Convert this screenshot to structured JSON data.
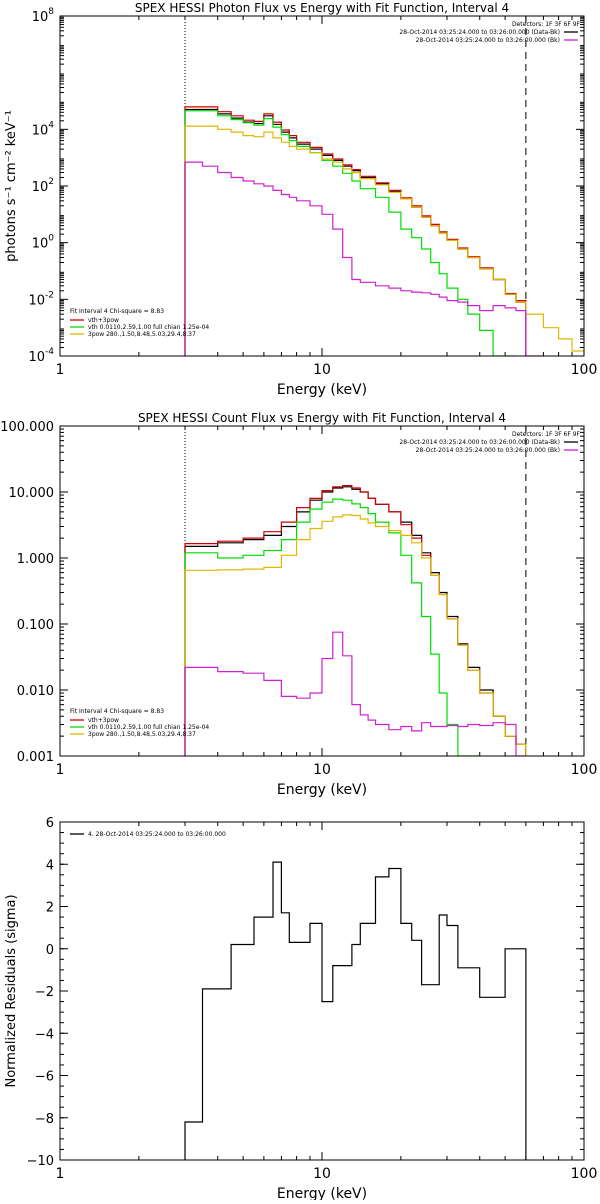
{
  "chart_data": [
    {
      "type": "line",
      "title": "SPEX HESSI Photon Flux vs Energy with Fit Function, Interval 4",
      "xlabel": "Energy (keV)",
      "ylabel": "photons s⁻¹ cm⁻² keV⁻¹",
      "xscale": "log",
      "yscale": "log",
      "xlim": [
        1,
        100
      ],
      "ylim": [
        0.0001,
        100000000
      ],
      "xticks": [
        {
          "v": 1,
          "label": "1"
        },
        {
          "v": 10,
          "label": "10"
        },
        {
          "v": 100,
          "label": "100"
        }
      ],
      "yticks": [
        {
          "v": 0.0001,
          "base": "10",
          "exp": "-4"
        },
        {
          "v": 0.01,
          "base": "10",
          "exp": "-2"
        },
        {
          "v": 1,
          "base": "10",
          "exp": "0"
        },
        {
          "v": 100,
          "base": "10",
          "exp": "2"
        },
        {
          "v": 10000,
          "base": "10",
          "exp": "4"
        },
        {
          "v": 100000000,
          "base": "10",
          "exp": "8"
        }
      ],
      "vlines": [
        {
          "x": 3,
          "style": "dotted"
        },
        {
          "x": 60,
          "style": "dashed"
        }
      ],
      "detectors": "Detectors: 1F 3F 6F 9F",
      "legend_top": [
        {
          "text": "28-Oct-2014 03:25:24.000 to 03:26:00.000 (Data-Bk)",
          "color": "#000000"
        },
        {
          "text": "28-Oct-2014 03:25:24.000 to 03:26:00.000 (Bk)",
          "color": "#d020d0"
        }
      ],
      "fit_info": "Fit Interval 4   Chi-square = 8.83",
      "legend_bottom": [
        {
          "text": "vth+3pow",
          "color": "#cc0000"
        },
        {
          "text": "vth 0.0110,2.59,1.00  full chian 1.25e-04",
          "color": "#00dd00"
        },
        {
          "text": "3pow 280.,1.50,8.48,5.03,29.4,8.37",
          "color": "#e0b800"
        }
      ],
      "edges": [
        3,
        3.5,
        4,
        4.5,
        5,
        5.5,
        6,
        6.5,
        7,
        7.5,
        8,
        9,
        10,
        11,
        12,
        13,
        14,
        16,
        18,
        20,
        22,
        24,
        26,
        28,
        30,
        33,
        36,
        40,
        45,
        50,
        55,
        60,
        70,
        80,
        90,
        100
      ],
      "series": [
        {
          "color": "#000000",
          "values": [
            50000,
            50000,
            35000,
            25000,
            18000,
            16000,
            30000,
            15000,
            8000,
            5000,
            3000,
            2000,
            1200,
            800,
            500,
            350,
            200,
            120,
            65,
            35,
            18,
            8,
            4,
            2.2,
            1.2,
            0.6,
            0.3,
            0.12,
            0.05,
            0.015,
            0.008,
            null,
            null,
            null,
            null
          ]
        },
        {
          "color": "#cc0000",
          "values": [
            62000,
            62000,
            42000,
            30000,
            21000,
            19000,
            35000,
            18000,
            9500,
            6000,
            3500,
            2300,
            1350,
            900,
            560,
            380,
            220,
            130,
            70,
            38,
            20,
            8.8,
            4.4,
            2.4,
            1.3,
            0.65,
            0.32,
            0.13,
            0.05,
            0.016,
            0.009,
            null,
            null,
            null,
            null
          ]
        },
        {
          "color": "#00dd00",
          "values": [
            45000,
            45000,
            30000,
            22000,
            17000,
            14000,
            24000,
            12000,
            6500,
            4000,
            2500,
            1500,
            800,
            500,
            280,
            150,
            80,
            40,
            12,
            3,
            1.5,
            0.6,
            0.2,
            0.08,
            0.025,
            0.01,
            0.003,
            0.0008,
            0.0001,
            5e-05,
            null,
            null,
            null,
            null,
            null
          ]
        },
        {
          "color": "#e0b800",
          "values": [
            13000,
            13000,
            10000,
            8000,
            6000,
            5500,
            8000,
            5000,
            3500,
            2500,
            2000,
            1500,
            900,
            700,
            400,
            300,
            180,
            110,
            60,
            35,
            18,
            8,
            4,
            2.2,
            1.2,
            0.6,
            0.3,
            0.12,
            0.05,
            0.015,
            0.008,
            0.003,
            0.001,
            0.0004,
            0.00015
          ]
        },
        {
          "color": "#d020d0",
          "values": [
            700,
            500,
            300,
            200,
            150,
            120,
            100,
            70,
            50,
            40,
            30,
            20,
            10,
            3,
            0.3,
            0.05,
            0.04,
            0.03,
            0.025,
            0.02,
            0.018,
            0.017,
            0.015,
            0.012,
            0.009,
            0.008,
            0.006,
            0.004,
            0.006,
            0.005,
            0.004,
            5e-05,
            null,
            null,
            null
          ]
        }
      ]
    },
    {
      "type": "line",
      "title": "SPEX HESSI Count Flux vs Energy with Fit Function, Interval 4",
      "xlabel": "Energy (keV)",
      "ylabel": "",
      "xscale": "log",
      "yscale": "log",
      "xlim": [
        1,
        100
      ],
      "ylim": [
        0.001,
        100
      ],
      "xticks": [
        {
          "v": 1,
          "label": "1"
        },
        {
          "v": 10,
          "label": "10"
        },
        {
          "v": 100,
          "label": "100"
        }
      ],
      "yticks": [
        {
          "v": 0.001,
          "label": "0.001"
        },
        {
          "v": 0.01,
          "label": "0.010"
        },
        {
          "v": 0.1,
          "label": "0.100"
        },
        {
          "v": 1,
          "label": "1.000"
        },
        {
          "v": 10,
          "label": "10.000"
        },
        {
          "v": 100,
          "label": "100.000"
        }
      ],
      "vlines": [
        {
          "x": 3,
          "style": "dotted"
        },
        {
          "x": 60,
          "style": "dashed"
        }
      ],
      "detectors": "Detectors: 1F 3F 6F 9F",
      "legend_top": [
        {
          "text": "28-Oct-2014 03:25:24.000 to 03:26:00.000 (Data-Bk)",
          "color": "#000000"
        },
        {
          "text": "28-Oct-2014 03:25:24.000 to 03:26:00.000 (Bk)",
          "color": "#d020d0"
        }
      ],
      "fit_info": "Fit Interval 4   Chi-square = 8.83",
      "legend_bottom": [
        {
          "text": "vth+3pow",
          "color": "#cc0000"
        },
        {
          "text": "vth 0.0110,2.59,1.00  full chian 1.25e-04",
          "color": "#00dd00"
        },
        {
          "text": "3pow 280.,1.50,8.48,5.03,29.4,8.37",
          "color": "#e0b800"
        }
      ],
      "edges": [
        3,
        4,
        5,
        6,
        7,
        8,
        9,
        10,
        11,
        12,
        13,
        14,
        15,
        16,
        18,
        20,
        22,
        24,
        26,
        28,
        30,
        33,
        36,
        40,
        45,
        50,
        55,
        60
      ],
      "series": [
        {
          "color": "#000000",
          "values": [
            1.5,
            1.7,
            1.9,
            2.2,
            3.0,
            5.0,
            7.5,
            10.0,
            11.5,
            12.0,
            11.0,
            10.0,
            8.0,
            6.5,
            5.0,
            3.5,
            2.2,
            1.2,
            0.6,
            0.3,
            0.13,
            0.05,
            0.022,
            0.01,
            0.004,
            0.002,
            0.0015
          ]
        },
        {
          "color": "#cc0000",
          "values": [
            1.65,
            1.8,
            2.0,
            2.5,
            3.5,
            5.8,
            8.0,
            10.5,
            12.0,
            12.5,
            11.5,
            10.0,
            8.0,
            6.5,
            5.0,
            3.2,
            2.0,
            1.1,
            0.55,
            0.28,
            0.12,
            0.048,
            0.02,
            0.009,
            0.004,
            0.002,
            0.0015
          ]
        },
        {
          "color": "#00dd00",
          "values": [
            1.2,
            1.0,
            1.1,
            1.3,
            1.9,
            3.5,
            5.5,
            7.0,
            7.8,
            7.5,
            6.6,
            5.8,
            4.7,
            3.5,
            2.4,
            1.1,
            0.42,
            0.13,
            0.035,
            0.009,
            0.003,
            0.001,
            0.0005,
            null,
            null,
            null,
            null
          ]
        },
        {
          "color": "#e0b800",
          "values": [
            0.65,
            0.66,
            0.68,
            0.72,
            1.1,
            1.9,
            2.8,
            3.6,
            4.2,
            4.5,
            4.4,
            3.9,
            3.4,
            3.0,
            2.6,
            2.2,
            1.7,
            1.0,
            0.55,
            0.28,
            0.12,
            0.048,
            0.02,
            0.009,
            0.004,
            0.002,
            0.0015
          ]
        },
        {
          "color": "#d020d0",
          "values": [
            0.022,
            0.019,
            0.018,
            0.014,
            0.008,
            0.0075,
            0.009,
            0.03,
            0.075,
            0.033,
            0.006,
            0.0042,
            0.0035,
            0.003,
            0.0025,
            0.0028,
            0.0024,
            0.0032,
            0.0028,
            0.0028,
            0.0029,
            0.0028,
            0.003,
            0.0029,
            0.0032,
            0.003,
            0.0001
          ]
        }
      ]
    },
    {
      "type": "line",
      "title": "",
      "xlabel": "Energy (keV)",
      "ylabel": "Normalized Residuals (sigma)",
      "xscale": "log",
      "yscale": "linear",
      "xlim": [
        1,
        100
      ],
      "ylim": [
        -10,
        6
      ],
      "xticks": [
        {
          "v": 1,
          "label": "1"
        },
        {
          "v": 10,
          "label": "10"
        },
        {
          "v": 100,
          "label": "100"
        }
      ],
      "yticks": [
        {
          "v": -10,
          "label": "−10"
        },
        {
          "v": -8,
          "label": "−8"
        },
        {
          "v": -6,
          "label": "−6"
        },
        {
          "v": -4,
          "label": "−4"
        },
        {
          "v": -2,
          "label": "−2"
        },
        {
          "v": 0,
          "label": "0"
        },
        {
          "v": 2,
          "label": "2"
        },
        {
          "v": 4,
          "label": "4"
        },
        {
          "v": 6,
          "label": "6"
        }
      ],
      "legend_top": [
        {
          "text": "4. 28-Oct-2014 03:25:24.000 to 03:26:00.000",
          "color": "#000000"
        }
      ],
      "edges": [
        3,
        3.5,
        4,
        4.5,
        5,
        5.5,
        6,
        6.5,
        7,
        7.5,
        8,
        9,
        10,
        11,
        12,
        13,
        14,
        16,
        18,
        20,
        22,
        24,
        26,
        28,
        30,
        33,
        36,
        40,
        45,
        50,
        55,
        60
      ],
      "series": [
        {
          "color": "#000000",
          "values": [
            -8.2,
            -1.9,
            -1.9,
            0.2,
            0.2,
            1.5,
            1.5,
            4.1,
            1.7,
            0.3,
            0.3,
            1.2,
            -2.5,
            -0.8,
            -0.8,
            0.2,
            1.2,
            3.4,
            3.8,
            1.2,
            0.4,
            -1.7,
            -1.7,
            1.6,
            1.1,
            -0.9,
            -0.9,
            -2.3,
            -2.3,
            0.0,
            0.0
          ]
        }
      ]
    }
  ]
}
